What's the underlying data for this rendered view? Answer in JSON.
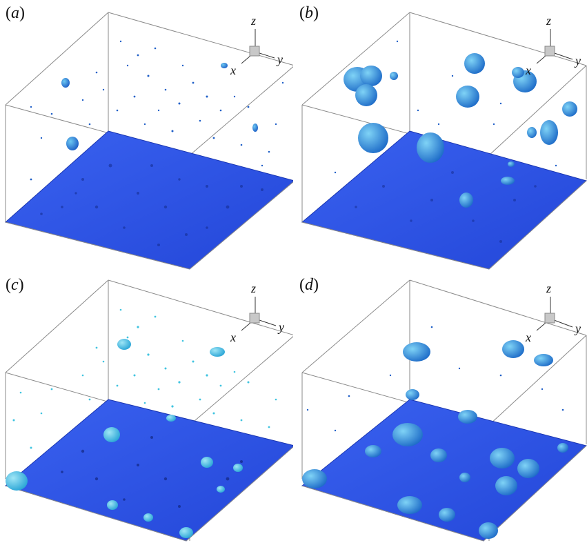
{
  "panels": [
    {
      "id": "a",
      "label_open": "(",
      "letter": "a",
      "label_close": ")",
      "theme": "dark-small",
      "axis_labels": {
        "x": "x",
        "y": "y",
        "z": "z"
      }
    },
    {
      "id": "b",
      "label_open": "(",
      "letter": "b",
      "label_close": ")",
      "theme": "dark-large",
      "axis_labels": {
        "x": "x",
        "y": "y",
        "z": "z"
      }
    },
    {
      "id": "c",
      "label_open": "(",
      "letter": "c",
      "label_close": ")",
      "theme": "cyan-small",
      "axis_labels": {
        "x": "x",
        "y": "y",
        "z": "z"
      }
    },
    {
      "id": "d",
      "label_open": "(",
      "letter": "d",
      "label_close": ")",
      "theme": "dark-large",
      "axis_labels": {
        "x": "x",
        "y": "y",
        "z": "z"
      }
    }
  ],
  "colors": {
    "floor": "#2e55e8",
    "floor_dark": "#1b3cc2",
    "box_edge": "#8a8a8a",
    "droplet_dark": "#1f5fc8",
    "droplet_light": "#49b6ea",
    "droplet_cyan": "#3fc4e0"
  }
}
